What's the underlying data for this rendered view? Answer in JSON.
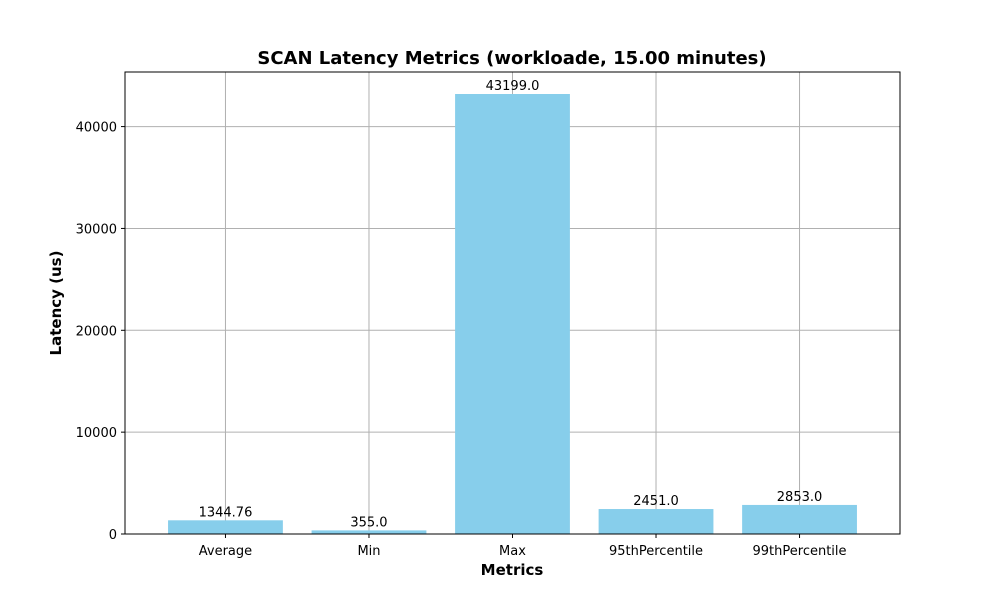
{
  "chart_data": {
    "type": "bar",
    "title": "SCAN Latency Metrics (workloade, 15.00 minutes)",
    "xlabel": "Metrics",
    "ylabel": "Latency (us)",
    "categories": [
      "Average",
      "Min",
      "Max",
      "95thPercentile",
      "99thPercentile"
    ],
    "values": [
      1344.76,
      355.0,
      43199.0,
      2451.0,
      2853.0
    ],
    "value_labels": [
      "1344.76",
      "355.0",
      "43199.0",
      "2451.0",
      "2853.0"
    ],
    "ylim": [
      0,
      45359
    ],
    "yticks": [
      0,
      10000,
      20000,
      30000,
      40000
    ],
    "grid": true,
    "bar_color": "#87ceeb"
  }
}
